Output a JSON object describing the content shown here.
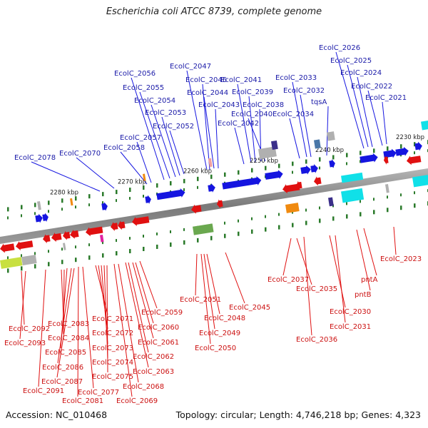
{
  "title": "Escherichia coli ATCC 8739, complete genome",
  "footer": {
    "accession": "Accession: NC_010468",
    "topology": "Topology: circular; Length: 4,746,218 bp; Genes: 4,323"
  },
  "ticks": [
    "2230 kbp",
    "2240 kbp",
    "2250 kbp",
    "2260 kbp",
    "2270 kbp",
    "2280 kbp"
  ],
  "genes_top": [
    "EcolC_2078",
    "EcolC_2070",
    "EcolC_2058",
    "EcolC_2057",
    "EcolC_2056",
    "EcolC_2055",
    "EcolC_2054",
    "EcolC_2053",
    "EcolC_2052",
    "EcolC_2047",
    "EcolC_2046",
    "EcolC_2044",
    "EcolC_2043",
    "EcolC_2042",
    "EcolC_2041",
    "EcolC_2039",
    "EcolC_2038",
    "EcolC_2040",
    "EcolC_2033",
    "EcolC_2032",
    "EcolC_2034",
    "tqsA",
    "EcolC_2026",
    "EcolC_2025",
    "EcolC_2024",
    "EcolC_2022",
    "EcolC_2021"
  ],
  "genes_bottom": [
    "EcolC_2092",
    "EcolC_2093",
    "EcolC_2083",
    "EcolC_2084",
    "EcolC_2085",
    "EcolC_2086",
    "EcolC_2087",
    "EcolC_2091",
    "EcolC_2081",
    "EcolC_2077",
    "EcolC_2071",
    "EcolC_2072",
    "EcolC_2073",
    "EcolC_2074",
    "EcolC_2075",
    "EcolC_2069",
    "EcolC_2068",
    "EcolC_2063",
    "EcolC_2062",
    "EcolC_2061",
    "EcolC_2060",
    "EcolC_2059",
    "EcolC_2051",
    "EcolC_2048",
    "EcolC_2049",
    "EcolC_2050",
    "EcolC_2045",
    "EcolC_2037",
    "EcolC_2035",
    "EcolC_2036",
    "EcolC_2030",
    "EcolC_2031",
    "pntA",
    "pntB",
    "EcolC_2023"
  ],
  "colors": {
    "forward_gene": "#1515e0",
    "reverse_gene": "#e01010",
    "backbone": "#8a8a8a",
    "tick": "#2a7a2a",
    "rna_orange": "#f08a10",
    "rna_magenta": "#e020a0",
    "rna_cyan": "#10e0e8",
    "rna_purple": "#3b2f8a",
    "pseudo_gray": "#b0b0b0",
    "steel_blue": "#4a78a8"
  }
}
